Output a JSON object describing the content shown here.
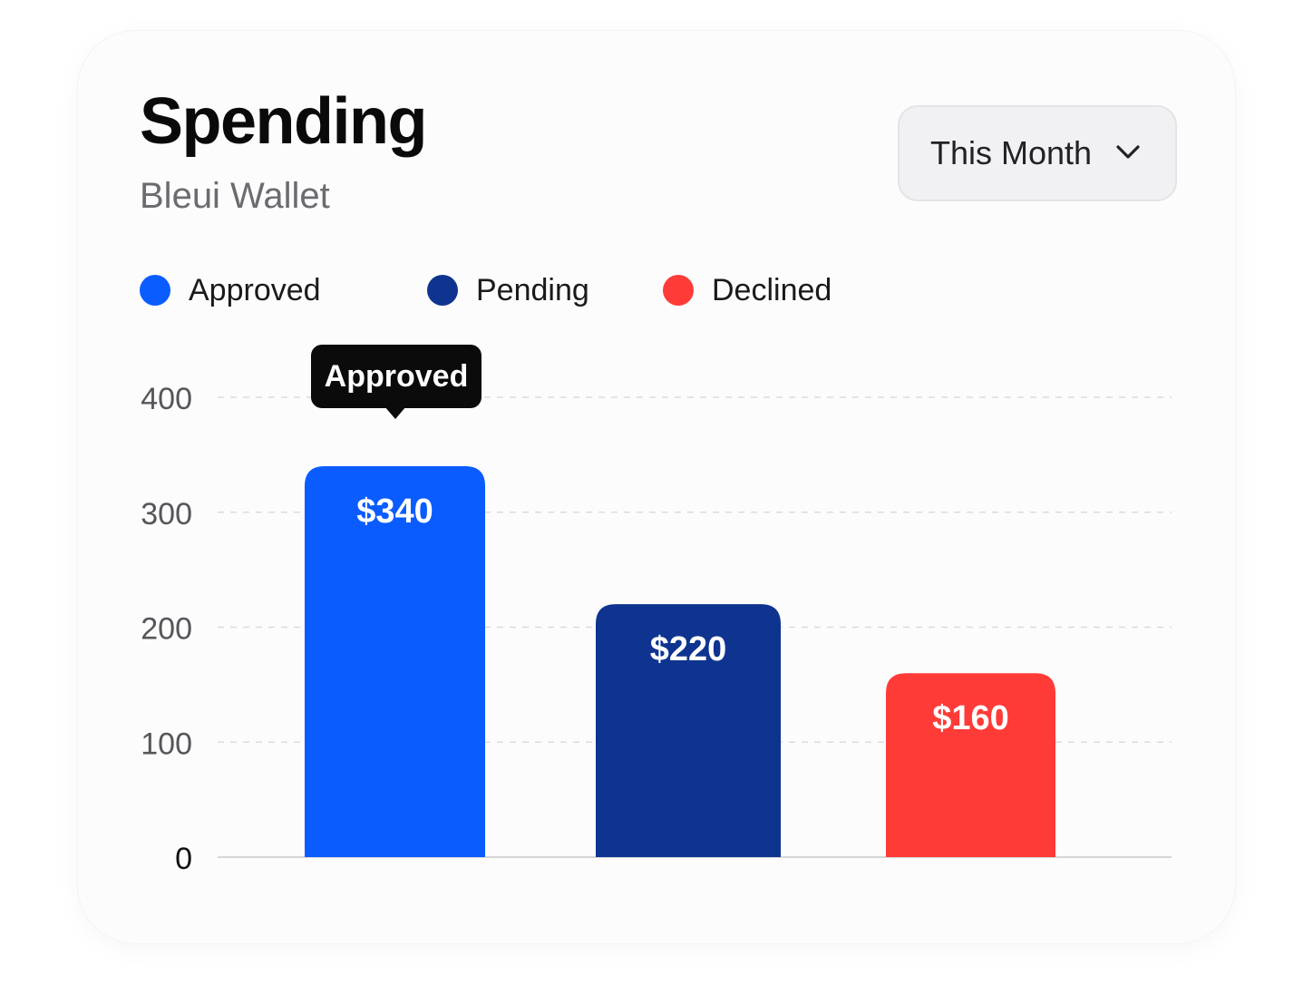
{
  "header": {
    "title": "Spending",
    "subtitle": "Bleui Wallet"
  },
  "period_select": {
    "label": "This Month",
    "icon": "chevron-down-icon"
  },
  "legend": [
    {
      "label": "Approved",
      "color": "#0a5cff"
    },
    {
      "label": "Pending",
      "color": "#0e3490"
    },
    {
      "label": "Declined",
      "color": "#ff3b38"
    }
  ],
  "tooltip": {
    "label": "Approved"
  },
  "chart_data": {
    "type": "bar",
    "categories": [
      "Approved",
      "Pending",
      "Declined"
    ],
    "values": [
      340,
      220,
      160
    ],
    "value_labels": [
      "$340",
      "$220",
      "$160"
    ],
    "colors": [
      "#0a5cff",
      "#0e3490",
      "#ff3b38"
    ],
    "ylim": [
      0,
      400
    ],
    "yticks": [
      0,
      100,
      200,
      300,
      400
    ],
    "ytick_labels": [
      "0",
      "100",
      "200",
      "300",
      "400"
    ],
    "grid": true,
    "title": "",
    "xlabel": "",
    "ylabel": ""
  }
}
